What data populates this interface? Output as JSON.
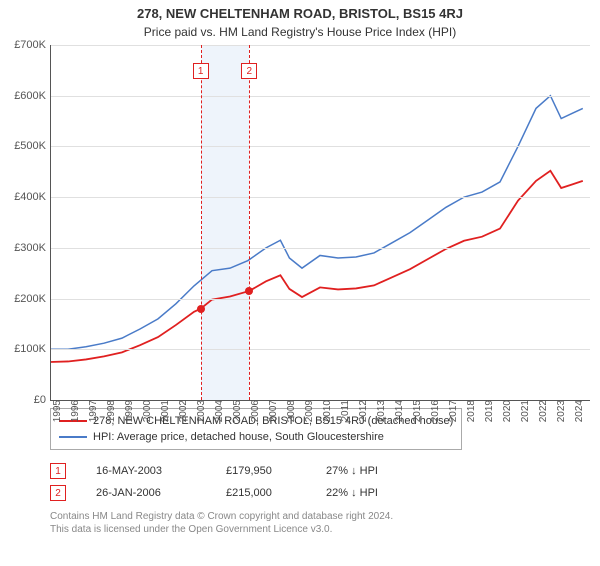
{
  "title": "278, NEW CHELTENHAM ROAD, BRISTOL, BS15 4RJ",
  "subtitle": "Price paid vs. HM Land Registry's House Price Index (HPI)",
  "chart": {
    "background": "#ffffff",
    "grid_color": "#e0e0e0",
    "axis_color": "#555555",
    "x_start_year": 1995,
    "x_end_year": 2025,
    "y_min": 0,
    "y_max": 700,
    "y_ticks": [
      0,
      100,
      200,
      300,
      400,
      500,
      600,
      700
    ],
    "y_tick_labels": [
      "£0",
      "£100K",
      "£200K",
      "£300K",
      "£400K",
      "£500K",
      "£600K",
      "£700K"
    ],
    "x_ticks": [
      1995,
      1996,
      1997,
      1998,
      1999,
      2000,
      2001,
      2002,
      2003,
      2004,
      2005,
      2006,
      2007,
      2008,
      2009,
      2010,
      2011,
      2012,
      2013,
      2014,
      2015,
      2016,
      2017,
      2018,
      2019,
      2020,
      2021,
      2022,
      2023,
      2024
    ],
    "event_band": {
      "start": 2003.37,
      "end": 2006.07,
      "fill": "#eef4fb"
    },
    "events": [
      {
        "num": "1",
        "year": 2003.37,
        "price": 179.95,
        "color": "#e02020"
      },
      {
        "num": "2",
        "year": 2006.07,
        "price": 215.0,
        "color": "#e02020"
      }
    ],
    "series": [
      {
        "id": "hpi",
        "label": "HPI: Average price, detached house, South Gloucestershire",
        "color": "#4a7bc8",
        "line_width": 1.5,
        "data": [
          [
            1995,
            100
          ],
          [
            1996,
            100
          ],
          [
            1997,
            105
          ],
          [
            1998,
            112
          ],
          [
            1999,
            122
          ],
          [
            2000,
            140
          ],
          [
            2001,
            160
          ],
          [
            2002,
            190
          ],
          [
            2003,
            225
          ],
          [
            2004,
            255
          ],
          [
            2005,
            260
          ],
          [
            2006,
            275
          ],
          [
            2007,
            300
          ],
          [
            2007.8,
            315
          ],
          [
            2008.3,
            280
          ],
          [
            2009,
            260
          ],
          [
            2010,
            285
          ],
          [
            2011,
            280
          ],
          [
            2012,
            282
          ],
          [
            2013,
            290
          ],
          [
            2014,
            310
          ],
          [
            2015,
            330
          ],
          [
            2016,
            355
          ],
          [
            2017,
            380
          ],
          [
            2018,
            400
          ],
          [
            2019,
            410
          ],
          [
            2020,
            430
          ],
          [
            2021,
            500
          ],
          [
            2022,
            575
          ],
          [
            2022.8,
            600
          ],
          [
            2023.4,
            555
          ],
          [
            2024,
            565
          ],
          [
            2024.6,
            575
          ]
        ]
      },
      {
        "id": "price_paid",
        "label": "278, NEW CHELTENHAM ROAD, BRISTOL, BS15 4RJ (detached house)",
        "color": "#e02020",
        "line_width": 1.8,
        "data": [
          [
            1995,
            75
          ],
          [
            1996,
            76
          ],
          [
            1997,
            80
          ],
          [
            1998,
            86
          ],
          [
            1999,
            94
          ],
          [
            2000,
            108
          ],
          [
            2001,
            124
          ],
          [
            2002,
            148
          ],
          [
            2003,
            174
          ],
          [
            2003.37,
            179.95
          ],
          [
            2004,
            198
          ],
          [
            2005,
            204
          ],
          [
            2006.07,
            215
          ],
          [
            2007,
            234
          ],
          [
            2007.8,
            246
          ],
          [
            2008.3,
            219
          ],
          [
            2009,
            203
          ],
          [
            2010,
            222
          ],
          [
            2011,
            218
          ],
          [
            2012,
            220
          ],
          [
            2013,
            226
          ],
          [
            2014,
            242
          ],
          [
            2015,
            258
          ],
          [
            2016,
            278
          ],
          [
            2017,
            298
          ],
          [
            2018,
            314
          ],
          [
            2019,
            322
          ],
          [
            2020,
            338
          ],
          [
            2021,
            393
          ],
          [
            2022,
            432
          ],
          [
            2022.8,
            452
          ],
          [
            2023.4,
            418
          ],
          [
            2024,
            425
          ],
          [
            2024.6,
            432
          ]
        ]
      }
    ]
  },
  "legend": {
    "rows": [
      {
        "series": "price_paid",
        "color": "#e02020"
      },
      {
        "series": "hpi",
        "color": "#4a7bc8"
      }
    ]
  },
  "sales": [
    {
      "num": "1",
      "date": "16-MAY-2003",
      "price": "£179,950",
      "change": "27% ↓ HPI",
      "marker_color": "#e02020"
    },
    {
      "num": "2",
      "date": "26-JAN-2006",
      "price": "£215,000",
      "change": "22% ↓ HPI",
      "marker_color": "#e02020"
    }
  ],
  "footer_line1": "Contains HM Land Registry data © Crown copyright and database right 2024.",
  "footer_line2": "This data is licensed under the Open Government Licence v3.0."
}
